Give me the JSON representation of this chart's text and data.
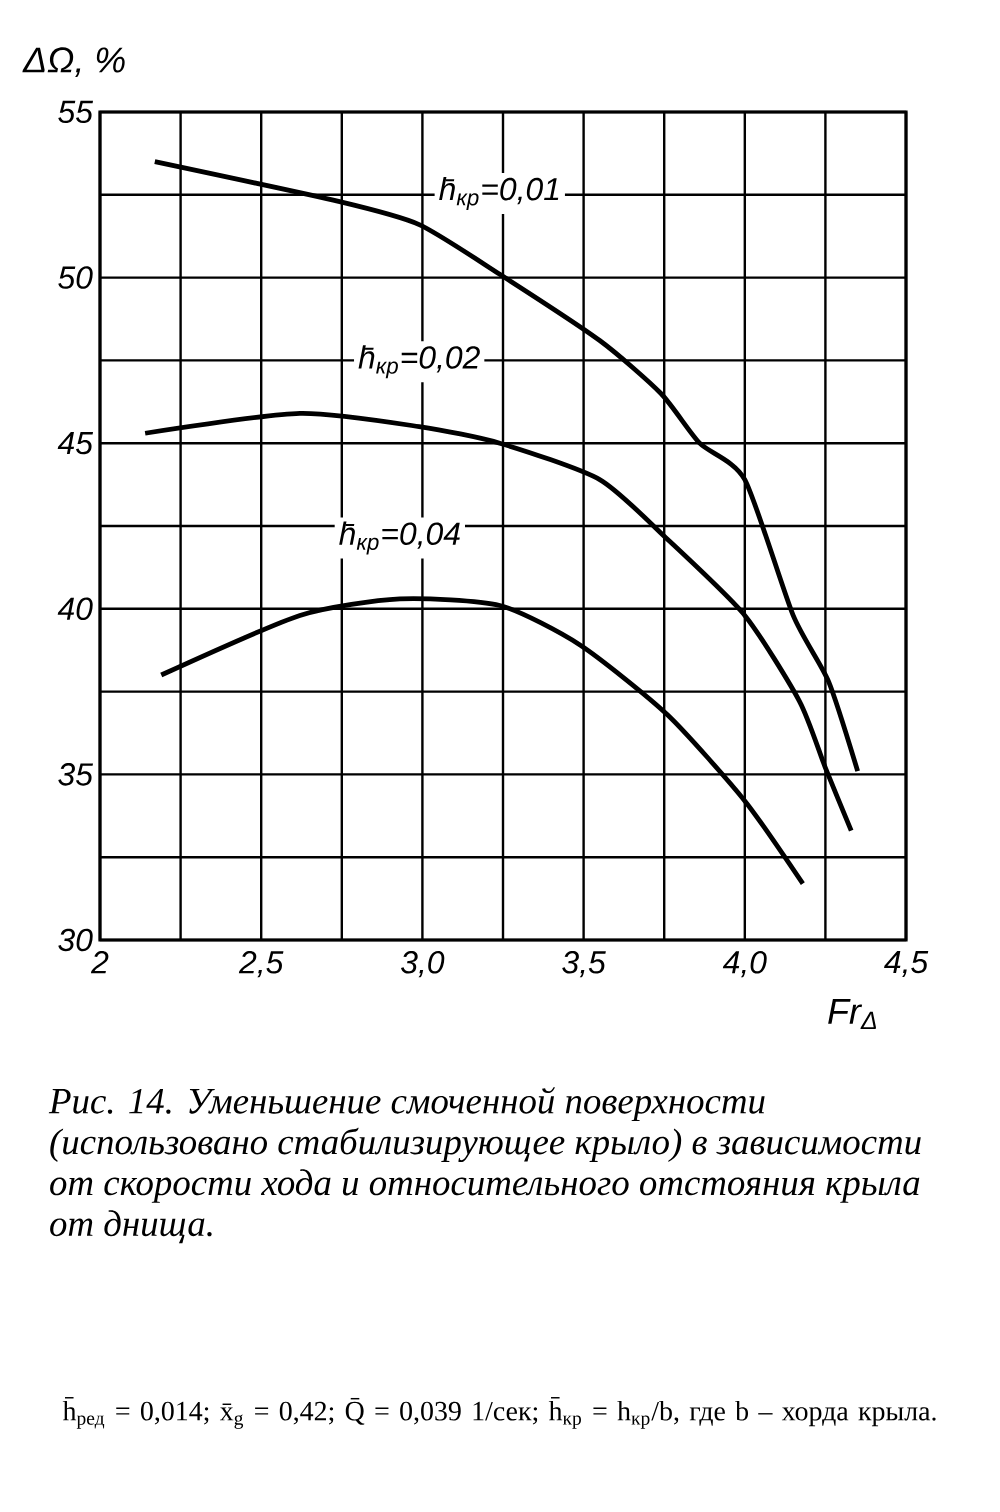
{
  "chart_data": {
    "type": "line",
    "ylabel": "ΔΩ, %",
    "xlabel": "Fr$_{Δ}$",
    "xlim": [
      2,
      4.5
    ],
    "ylim": [
      30,
      55
    ],
    "xticks": [
      2,
      {
        "value": 2.25,
        "label": null
      },
      {
        "value": 2.5,
        "label": "2,5"
      },
      {
        "value": 2.75,
        "label": null
      },
      {
        "value": 3,
        "label": "3,0"
      },
      {
        "value": 3.25,
        "label": null
      },
      {
        "value": 3.5,
        "label": "3,5"
      },
      {
        "value": 3.75,
        "label": null
      },
      {
        "value": 4,
        "label": "4,0"
      },
      {
        "value": 4.25,
        "label": null
      },
      {
        "value": 4.5,
        "label": "4,5"
      }
    ],
    "yticks": [
      30,
      {
        "value": 32.5,
        "label": null
      },
      35,
      {
        "value": 37.5,
        "label": null
      },
      40,
      {
        "value": 42.5,
        "label": null
      },
      45,
      {
        "value": 47.5,
        "label": null
      },
      50,
      {
        "value": 52.5,
        "label": null
      },
      55
    ],
    "grid": true,
    "line_style": "solid",
    "series": [
      {
        "name": "h̄$_{кр}$=0,01",
        "color": "#000000",
        "x": [
          2.17,
          2.74,
          2.99,
          3.24,
          3.55,
          3.74,
          3.86,
          4.0,
          4.15,
          4.26,
          4.35
        ],
        "values": [
          53.5,
          52.3,
          51.6,
          50.1,
          48.1,
          46.5,
          45.0,
          43.9,
          39.8,
          37.8,
          35.1
        ]
      },
      {
        "name": "h̄$_{кр}$=0,02",
        "color": "#000000",
        "x": [
          2.14,
          2.62,
          2.99,
          3.24,
          3.55,
          3.76,
          4.0,
          4.17,
          4.25,
          4.33
        ],
        "values": [
          45.3,
          45.9,
          45.5,
          45.0,
          43.9,
          42.1,
          39.8,
          37.2,
          35.2,
          33.3
        ]
      },
      {
        "name": "h̄$_{кр}$=0,04",
        "color": "#000000",
        "x": [
          2.19,
          2.62,
          2.93,
          3.24,
          3.49,
          3.76,
          4.0,
          4.18
        ],
        "values": [
          38.0,
          39.8,
          40.3,
          40.1,
          38.9,
          36.8,
          34.2,
          31.7
        ]
      }
    ],
    "annotations": [
      "Рис. 14. Уменьшение смоченной поверхности (использовано стабилизирующее крыло) в зависимости от скорости хода и относительного отстояния крыла от днища.",
      "h̄$_{ред}$ = 0,014; x̄$_{g}$ = 0,42; Q̄ = 0,039 1/сек; h̄$_{кр}$ = h$_{кр}$/b, где b – хорда крыла."
    ]
  }
}
